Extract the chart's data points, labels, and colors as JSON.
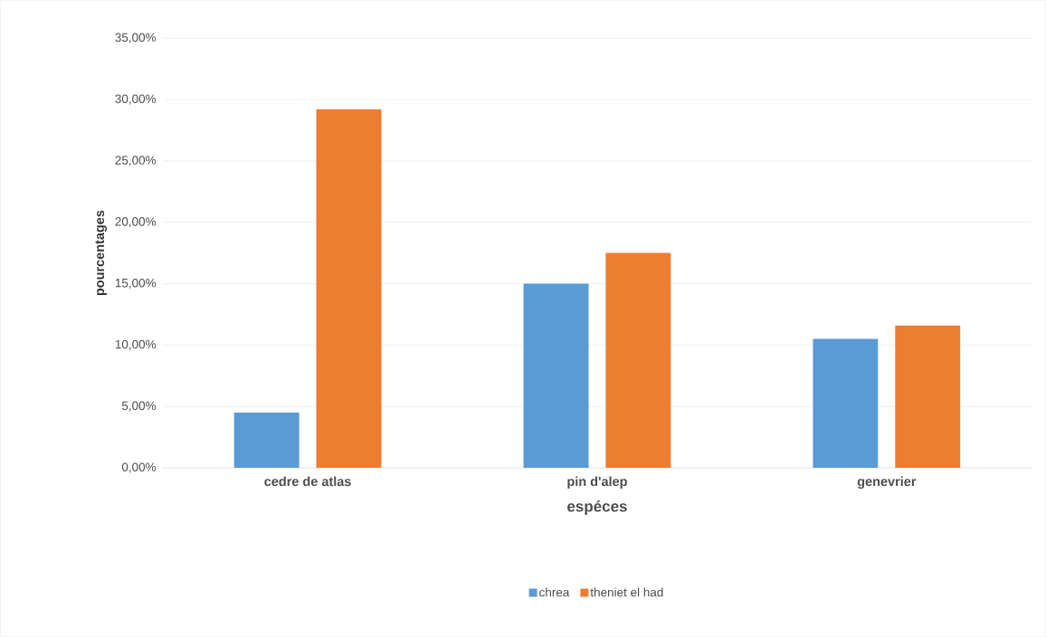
{
  "chart_data": {
    "type": "bar",
    "xlabel": "espéces",
    "ylabel": "pourcentages",
    "categories": [
      "cedre de atlas",
      "pin d'alep",
      "genevrier"
    ],
    "series": [
      {
        "name": "chrea",
        "color": "#5b9bd5",
        "values": [
          4.5,
          15.0,
          10.5
        ]
      },
      {
        "name": "theniet el had",
        "color": "#ed7d31",
        "values": [
          29.2,
          17.5,
          11.6
        ]
      }
    ],
    "ylim": [
      0,
      35
    ],
    "yticks": [
      {
        "value": 0,
        "label": "0,00%"
      },
      {
        "value": 5,
        "label": "5,00%"
      },
      {
        "value": 10,
        "label": "10,00%"
      },
      {
        "value": 15,
        "label": "15,00%"
      },
      {
        "value": 20,
        "label": "20,00%"
      },
      {
        "value": 25,
        "label": "25,00%"
      },
      {
        "value": 30,
        "label": "30,00%"
      },
      {
        "value": 35,
        "label": "35,00%"
      }
    ],
    "grid": "y",
    "legend": "bottom"
  }
}
